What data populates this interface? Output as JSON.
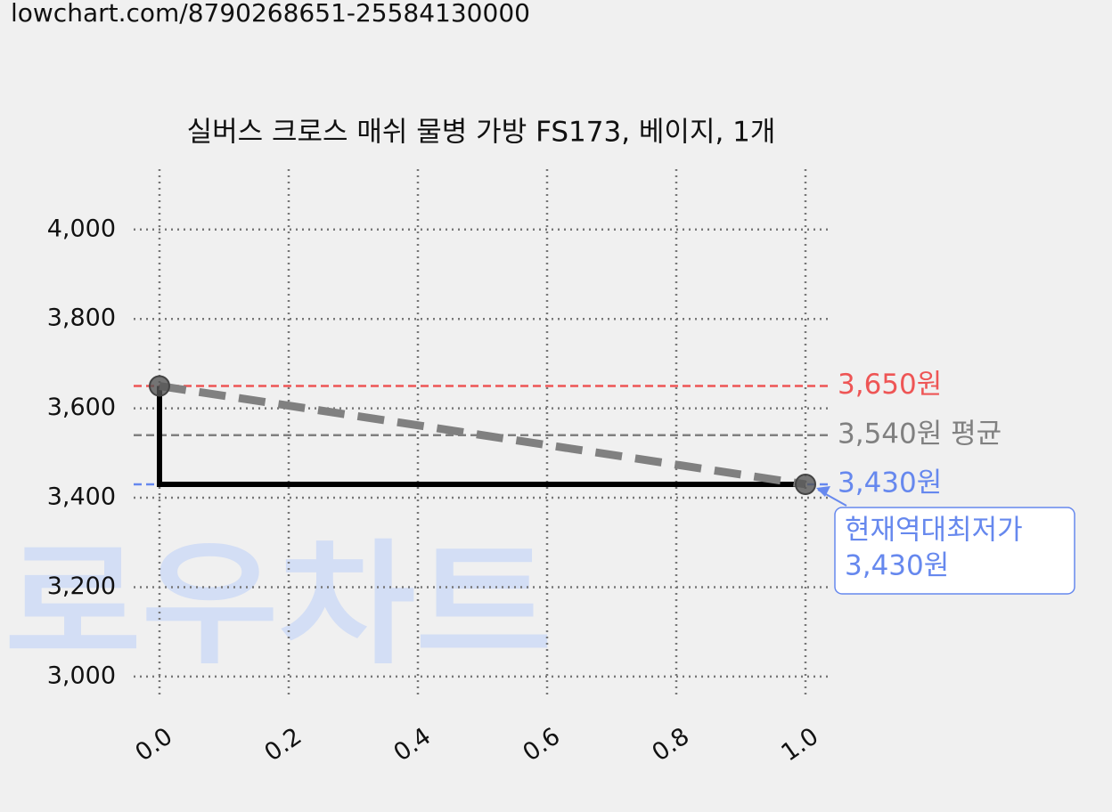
{
  "url": "lowchart.com/8790268651-25584130000",
  "chart_data": {
    "type": "line",
    "title": "실버스 크로스 매쉬 물병 가방 FS173, 베이지, 1개",
    "x": [
      0,
      1
    ],
    "series": [
      {
        "color": "#000000",
        "trend_color": "#808080",
        "values": [
          3650,
          3430
        ]
      }
    ],
    "xlim": [
      -0.04,
      1.04
    ],
    "ylim": [
      2950,
      4135
    ],
    "xticks": [
      {
        "value": 0,
        "label": "0.0"
      },
      {
        "value": 0.2,
        "label": "0.2"
      },
      {
        "value": 0.4,
        "label": "0.4"
      },
      {
        "value": 0.6,
        "label": "0.6"
      },
      {
        "value": 0.8,
        "label": "0.8"
      },
      {
        "value": 1,
        "label": "1.0"
      }
    ],
    "yticks": [
      {
        "value": 3000,
        "label": "3,000"
      },
      {
        "value": 3200,
        "label": "3,200"
      },
      {
        "value": 3400,
        "label": "3,400"
      },
      {
        "value": 3600,
        "label": "3,600"
      },
      {
        "value": 3800,
        "label": "3,800"
      },
      {
        "value": 4000,
        "label": "4,000"
      }
    ],
    "grid": true,
    "reference_lines": [
      {
        "value": 3650,
        "label": "3,650원",
        "color": "#ee5555"
      },
      {
        "value": 3540,
        "label": "3,540원 평균",
        "color": "#808080"
      },
      {
        "value": 3430,
        "label": "3,430원",
        "color": "#6688ee"
      }
    ],
    "annotation": {
      "lines": [
        "현재역대최저가",
        "3,430원"
      ],
      "color": "#6688ee"
    },
    "watermark": "로우차트"
  }
}
